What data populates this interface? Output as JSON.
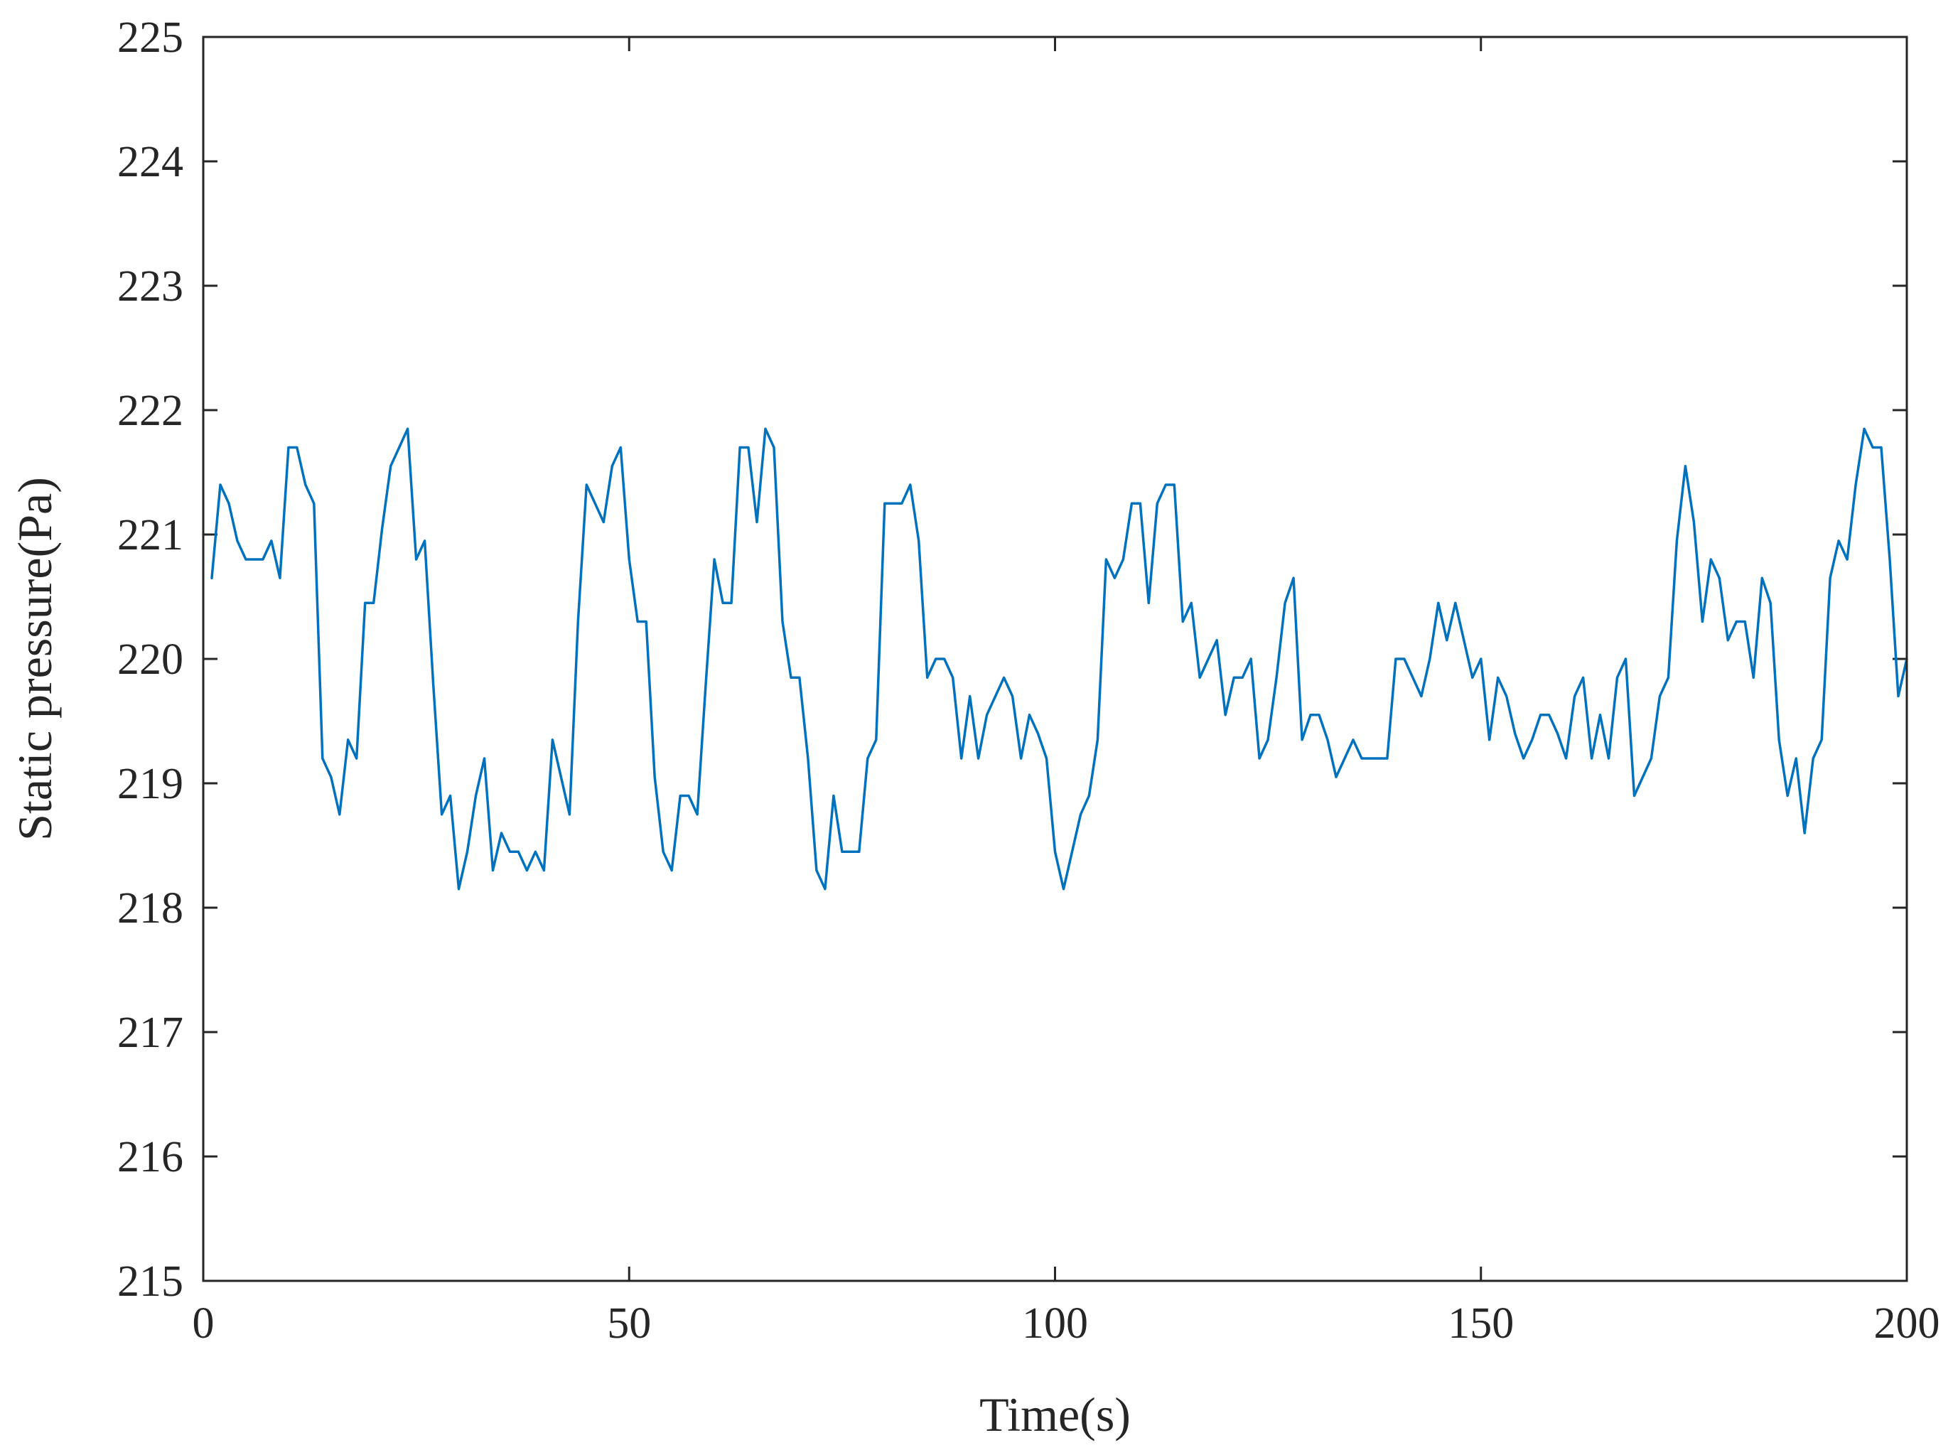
{
  "chart_data": {
    "type": "line",
    "xlabel": "Time(s)",
    "ylabel": "Static pressure(Pa)",
    "xlim": [
      0,
      200
    ],
    "ylim": [
      215,
      225
    ],
    "xticks": [
      0,
      50,
      100,
      150,
      200
    ],
    "yticks": [
      215,
      216,
      217,
      218,
      219,
      220,
      221,
      222,
      223,
      224,
      225
    ],
    "grid": false,
    "legend": "none",
    "color": "#0072BD",
    "series": [
      {
        "x": [
          1,
          2,
          3,
          4,
          5,
          6,
          7,
          8,
          9,
          10,
          11,
          12,
          13,
          14,
          15,
          16,
          17,
          18,
          19,
          20,
          21,
          22,
          23,
          24,
          25,
          26,
          27,
          28,
          29,
          30,
          31,
          32,
          33,
          34,
          35,
          36,
          37,
          38,
          39,
          40,
          41,
          42,
          43,
          44,
          45,
          46,
          47,
          48,
          49,
          50,
          51,
          52,
          53,
          54,
          55,
          56,
          57,
          58,
          59,
          60,
          61,
          62,
          63,
          64,
          65,
          66,
          67,
          68,
          69,
          70,
          71,
          72,
          73,
          74,
          75,
          76,
          77,
          78,
          79,
          80,
          81,
          82,
          83,
          84,
          85,
          86,
          87,
          88,
          89,
          90,
          91,
          92,
          93,
          94,
          95,
          96,
          97,
          98,
          99,
          100,
          101,
          102,
          103,
          104,
          105,
          106,
          107,
          108,
          109,
          110,
          111,
          112,
          113,
          114,
          115,
          116,
          117,
          118,
          119,
          120,
          121,
          122,
          123,
          124,
          125,
          126,
          127,
          128,
          129,
          130,
          131,
          132,
          133,
          134,
          135,
          136,
          137,
          138,
          139,
          140,
          141,
          142,
          143,
          144,
          145,
          146,
          147,
          148,
          149,
          150,
          151,
          152,
          153,
          154,
          155,
          156,
          157,
          158,
          159,
          160,
          161,
          162,
          163,
          164,
          165,
          166,
          167,
          168,
          169,
          170,
          171,
          172,
          173,
          174,
          175,
          176,
          177,
          178,
          179,
          180,
          181,
          182,
          183,
          184,
          185,
          186,
          187,
          188,
          189,
          190,
          191,
          192,
          193,
          194,
          195,
          196,
          197,
          198,
          199,
          200
        ],
        "y": [
          220.65,
          221.4,
          221.25,
          220.95,
          220.8,
          220.8,
          220.8,
          220.95,
          220.65,
          221.7,
          221.7,
          221.4,
          221.25,
          219.2,
          219.05,
          218.75,
          219.35,
          219.2,
          220.45,
          220.45,
          221.05,
          221.55,
          221.7,
          221.85,
          220.8,
          220.95,
          219.8,
          218.75,
          218.9,
          218.15,
          218.45,
          218.9,
          219.2,
          218.3,
          218.6,
          218.45,
          218.45,
          218.3,
          218.45,
          218.3,
          219.35,
          219.05,
          218.75,
          220.3,
          221.4,
          221.25,
          221.1,
          221.55,
          221.7,
          220.8,
          220.3,
          220.3,
          219.05,
          218.45,
          218.3,
          218.9,
          218.9,
          218.75,
          219.8,
          220.8,
          220.45,
          220.45,
          221.7,
          221.7,
          221.1,
          221.85,
          221.7,
          220.3,
          219.85,
          219.85,
          219.2,
          218.3,
          218.15,
          218.9,
          218.45,
          218.45,
          218.45,
          219.2,
          219.35,
          221.25,
          221.25,
          221.25,
          221.4,
          220.95,
          219.85,
          220,
          220,
          219.85,
          219.2,
          219.7,
          219.2,
          219.55,
          219.7,
          219.85,
          219.7,
          219.2,
          219.55,
          219.4,
          219.2,
          218.45,
          218.15,
          218.45,
          218.75,
          218.9,
          219.35,
          220.8,
          220.65,
          220.8,
          221.25,
          221.25,
          220.45,
          221.25,
          221.4,
          221.4,
          220.3,
          220.45,
          219.85,
          220,
          220.15,
          219.55,
          219.85,
          219.85,
          220,
          219.2,
          219.35,
          219.85,
          220.45,
          220.65,
          219.35,
          219.55,
          219.55,
          219.35,
          219.05,
          219.2,
          219.35,
          219.2,
          219.2,
          219.2,
          219.2,
          220,
          220,
          219.85,
          219.7,
          220,
          220.45,
          220.15,
          220.45,
          220.15,
          219.85,
          220,
          219.35,
          219.85,
          219.7,
          219.4,
          219.2,
          219.35,
          219.55,
          219.55,
          219.4,
          219.2,
          219.7,
          219.85,
          219.2,
          219.55,
          219.2,
          219.85,
          220,
          218.9,
          219.05,
          219.2,
          219.7,
          219.85,
          220.95,
          221.55,
          221.1,
          220.3,
          220.8,
          220.65,
          220.15,
          220.3,
          220.3,
          219.85,
          220.65,
          220.45,
          219.35,
          218.9,
          219.2,
          218.6,
          219.2,
          219.35,
          220.65,
          220.95,
          220.8,
          221.4,
          221.85,
          221.7,
          221.7,
          220.8,
          219.7,
          220
        ]
      }
    ]
  }
}
